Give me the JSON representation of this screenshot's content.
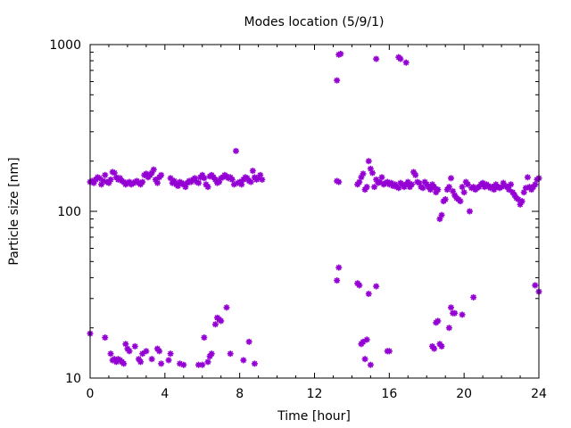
{
  "chart_data": {
    "type": "scatter",
    "title": "Modes location (5/9/1)",
    "xlabel": "Time [hour]",
    "ylabel": "Particle size [nm]",
    "xlim": [
      0,
      24
    ],
    "ylim": [
      10,
      1000
    ],
    "y_scale": "log",
    "grid": false,
    "legend": "none",
    "marker_color": "#9400d3",
    "xticks": [
      0,
      4,
      8,
      12,
      16,
      20,
      24
    ],
    "xtick_labels": [
      "0",
      "4",
      "8",
      "12",
      "16",
      "20",
      "24"
    ],
    "yticks": [
      10,
      100,
      1000
    ],
    "ytick_labels": [
      "10",
      "100",
      "1000"
    ],
    "series": [
      {
        "points": [
          [
            0.0,
            150
          ],
          [
            0.1,
            152
          ],
          [
            0.2,
            148
          ],
          [
            0.3,
            155
          ],
          [
            0.4,
            160
          ],
          [
            0.5,
            158
          ],
          [
            0.6,
            145
          ],
          [
            0.7,
            152
          ],
          [
            0.8,
            165
          ],
          [
            0.9,
            150
          ],
          [
            1.0,
            148
          ],
          [
            1.1,
            155
          ],
          [
            1.2,
            172
          ],
          [
            1.3,
            170
          ],
          [
            1.4,
            160
          ],
          [
            1.5,
            155
          ],
          [
            1.6,
            158
          ],
          [
            1.7,
            152
          ],
          [
            1.8,
            150
          ],
          [
            1.9,
            145
          ],
          [
            2.0,
            148
          ],
          [
            2.1,
            150
          ],
          [
            2.2,
            145
          ],
          [
            2.3,
            147
          ],
          [
            2.4,
            150
          ],
          [
            2.5,
            152
          ],
          [
            2.6,
            148
          ],
          [
            2.7,
            145
          ],
          [
            2.8,
            150
          ],
          [
            2.9,
            165
          ],
          [
            3.0,
            168
          ],
          [
            3.1,
            160
          ],
          [
            3.2,
            165
          ],
          [
            3.3,
            170
          ],
          [
            3.4,
            178
          ],
          [
            3.5,
            155
          ],
          [
            3.6,
            148
          ],
          [
            3.7,
            160
          ],
          [
            3.8,
            165
          ],
          [
            4.3,
            158
          ],
          [
            4.4,
            148
          ],
          [
            4.5,
            152
          ],
          [
            4.6,
            145
          ],
          [
            4.7,
            142
          ],
          [
            4.8,
            150
          ],
          [
            4.9,
            148
          ],
          [
            5.0,
            145
          ],
          [
            5.1,
            140
          ],
          [
            5.2,
            148
          ],
          [
            5.3,
            152
          ],
          [
            5.4,
            150
          ],
          [
            5.5,
            155
          ],
          [
            5.6,
            158
          ],
          [
            5.7,
            150
          ],
          [
            5.8,
            148
          ],
          [
            5.9,
            160
          ],
          [
            6.0,
            165
          ],
          [
            6.1,
            158
          ],
          [
            6.2,
            145
          ],
          [
            6.3,
            140
          ],
          [
            6.4,
            162
          ],
          [
            6.5,
            165
          ],
          [
            6.6,
            160
          ],
          [
            6.7,
            155
          ],
          [
            6.8,
            148
          ],
          [
            6.9,
            150
          ],
          [
            7.0,
            158
          ],
          [
            7.1,
            160
          ],
          [
            7.2,
            165
          ],
          [
            7.3,
            162
          ],
          [
            7.4,
            158
          ],
          [
            7.5,
            160
          ],
          [
            7.6,
            155
          ],
          [
            7.7,
            145
          ],
          [
            7.8,
            230
          ],
          [
            7.9,
            148
          ],
          [
            8.0,
            150
          ],
          [
            8.1,
            145
          ],
          [
            8.2,
            155
          ],
          [
            8.3,
            160
          ],
          [
            8.4,
            158
          ],
          [
            8.5,
            152
          ],
          [
            8.6,
            150
          ],
          [
            8.7,
            175
          ],
          [
            8.8,
            160
          ],
          [
            8.9,
            155
          ],
          [
            9.0,
            158
          ],
          [
            9.1,
            165
          ],
          [
            9.2,
            155
          ],
          [
            13.2,
            152
          ],
          [
            13.3,
            150
          ],
          [
            14.3,
            145
          ],
          [
            14.4,
            150
          ],
          [
            14.5,
            160
          ],
          [
            14.6,
            168
          ],
          [
            14.7,
            135
          ],
          [
            14.8,
            140
          ],
          [
            14.9,
            200
          ],
          [
            15.0,
            180
          ],
          [
            15.1,
            170
          ],
          [
            15.2,
            140
          ],
          [
            15.3,
            155
          ],
          [
            15.4,
            148
          ],
          [
            15.5,
            150
          ],
          [
            15.6,
            160
          ],
          [
            15.7,
            145
          ],
          [
            15.8,
            148
          ],
          [
            15.9,
            150
          ],
          [
            16.0,
            145
          ],
          [
            16.1,
            148
          ],
          [
            16.2,
            142
          ],
          [
            16.3,
            145
          ],
          [
            16.4,
            140
          ],
          [
            16.5,
            138
          ],
          [
            16.6,
            148
          ],
          [
            16.7,
            145
          ],
          [
            16.8,
            140
          ],
          [
            16.9,
            145
          ],
          [
            17.0,
            150
          ],
          [
            17.1,
            140
          ],
          [
            17.2,
            145
          ],
          [
            17.3,
            172
          ],
          [
            17.4,
            165
          ],
          [
            17.5,
            150
          ],
          [
            17.6,
            148
          ],
          [
            17.7,
            140
          ],
          [
            17.8,
            138
          ],
          [
            17.9,
            150
          ],
          [
            18.0,
            145
          ],
          [
            18.1,
            140
          ],
          [
            18.2,
            135
          ],
          [
            18.3,
            145
          ],
          [
            18.4,
            140
          ],
          [
            18.5,
            130
          ],
          [
            18.6,
            135
          ],
          [
            18.7,
            90
          ],
          [
            18.8,
            95
          ],
          [
            18.9,
            115
          ],
          [
            19.0,
            118
          ],
          [
            19.1,
            135
          ],
          [
            19.2,
            140
          ],
          [
            19.3,
            158
          ],
          [
            19.4,
            132
          ],
          [
            19.5,
            125
          ],
          [
            19.6,
            120
          ],
          [
            19.7,
            118
          ],
          [
            19.8,
            115
          ],
          [
            19.9,
            140
          ],
          [
            20.0,
            130
          ],
          [
            20.1,
            150
          ],
          [
            20.2,
            145
          ],
          [
            20.3,
            100
          ],
          [
            20.4,
            138
          ],
          [
            20.5,
            140
          ],
          [
            20.6,
            135
          ],
          [
            20.7,
            138
          ],
          [
            20.8,
            140
          ],
          [
            20.9,
            145
          ],
          [
            21.0,
            148
          ],
          [
            21.1,
            140
          ],
          [
            21.2,
            145
          ],
          [
            21.3,
            142
          ],
          [
            21.4,
            138
          ],
          [
            21.5,
            140
          ],
          [
            21.6,
            135
          ],
          [
            21.7,
            145
          ],
          [
            21.8,
            140
          ],
          [
            21.9,
            138
          ],
          [
            22.0,
            140
          ],
          [
            22.1,
            148
          ],
          [
            22.2,
            142
          ],
          [
            22.3,
            140
          ],
          [
            22.4,
            135
          ],
          [
            22.5,
            145
          ],
          [
            22.6,
            130
          ],
          [
            22.7,
            125
          ],
          [
            22.8,
            120
          ],
          [
            22.9,
            118
          ],
          [
            23.0,
            110
          ],
          [
            23.1,
            115
          ],
          [
            23.2,
            130
          ],
          [
            23.3,
            138
          ],
          [
            23.4,
            160
          ],
          [
            23.5,
            140
          ],
          [
            23.6,
            135
          ],
          [
            23.7,
            140
          ],
          [
            23.8,
            145
          ],
          [
            23.9,
            155
          ],
          [
            24.0,
            158
          ],
          [
            0.0,
            18.5
          ],
          [
            0.8,
            17.5
          ],
          [
            1.1,
            14
          ],
          [
            1.2,
            12.8
          ],
          [
            1.3,
            13
          ],
          [
            1.4,
            12.5
          ],
          [
            1.5,
            13
          ],
          [
            1.6,
            12.8
          ],
          [
            1.7,
            12.5
          ],
          [
            1.8,
            12.2
          ],
          [
            1.9,
            16
          ],
          [
            2.0,
            15
          ],
          [
            2.1,
            14.5
          ],
          [
            2.4,
            15.5
          ],
          [
            2.6,
            13
          ],
          [
            2.7,
            12.5
          ],
          [
            2.8,
            14
          ],
          [
            3.0,
            14.5
          ],
          [
            3.3,
            13
          ],
          [
            3.6,
            15
          ],
          [
            3.7,
            14.5
          ],
          [
            3.8,
            12.2
          ],
          [
            4.2,
            12.8
          ],
          [
            4.3,
            14
          ],
          [
            4.8,
            12.2
          ],
          [
            5.0,
            12
          ],
          [
            5.8,
            12
          ],
          [
            6.0,
            12
          ],
          [
            6.1,
            17.5
          ],
          [
            6.3,
            12.5
          ],
          [
            6.4,
            13.5
          ],
          [
            6.5,
            14
          ],
          [
            6.7,
            21
          ],
          [
            6.8,
            23
          ],
          [
            6.9,
            22.5
          ],
          [
            7.0,
            22
          ],
          [
            7.3,
            26.5
          ],
          [
            7.5,
            14
          ],
          [
            8.2,
            12.8
          ],
          [
            8.5,
            16.5
          ],
          [
            8.8,
            12.2
          ],
          [
            13.2,
            38.5
          ],
          [
            13.3,
            46
          ],
          [
            14.3,
            37
          ],
          [
            14.4,
            36
          ],
          [
            14.5,
            16
          ],
          [
            14.6,
            16.5
          ],
          [
            14.7,
            13
          ],
          [
            14.8,
            17
          ],
          [
            14.9,
            32
          ],
          [
            15.0,
            12
          ],
          [
            15.3,
            35.5
          ],
          [
            15.9,
            14.5
          ],
          [
            16.0,
            14.5
          ],
          [
            18.3,
            15.5
          ],
          [
            18.4,
            15
          ],
          [
            18.5,
            21.5
          ],
          [
            18.6,
            22
          ],
          [
            18.7,
            16
          ],
          [
            18.8,
            15.5
          ],
          [
            19.2,
            20
          ],
          [
            19.3,
            26.5
          ],
          [
            19.4,
            24.5
          ],
          [
            19.5,
            24.5
          ],
          [
            19.9,
            24
          ],
          [
            20.5,
            30.5
          ],
          [
            23.8,
            36
          ],
          [
            24.0,
            33
          ],
          [
            13.2,
            610
          ],
          [
            13.3,
            870
          ],
          [
            13.4,
            880
          ],
          [
            15.3,
            820
          ],
          [
            16.5,
            840
          ],
          [
            16.6,
            820
          ],
          [
            16.9,
            780
          ]
        ]
      }
    ]
  }
}
